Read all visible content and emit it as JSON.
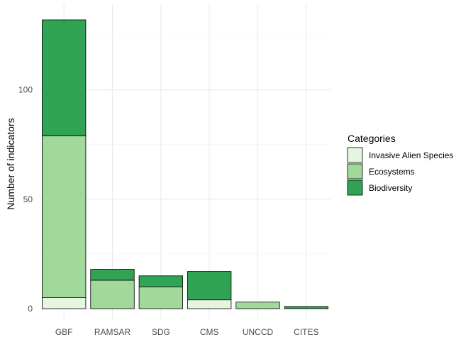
{
  "chart_data": {
    "type": "bar",
    "stacked": true,
    "title": "",
    "xlabel": "",
    "ylabel": "Number of indicators",
    "categories": [
      "GBF",
      "RAMSAR",
      "SDG",
      "CMS",
      "UNCCD",
      "CITES"
    ],
    "series": [
      {
        "name": "Invasive Alien Species",
        "color": "#e5f5e0",
        "values": [
          5,
          0,
          0,
          4,
          0,
          0
        ]
      },
      {
        "name": "Ecosystems",
        "color": "#a1d99b",
        "values": [
          74,
          13,
          10,
          0,
          3,
          0
        ]
      },
      {
        "name": "Biodiversity",
        "color": "#31a354",
        "values": [
          53,
          5,
          5,
          13,
          0,
          1
        ]
      }
    ],
    "ylim": [
      0,
      137
    ],
    "yticks": [
      0,
      50,
      100
    ],
    "grid": true,
    "legend": {
      "title": "Categories",
      "position": "right"
    }
  }
}
